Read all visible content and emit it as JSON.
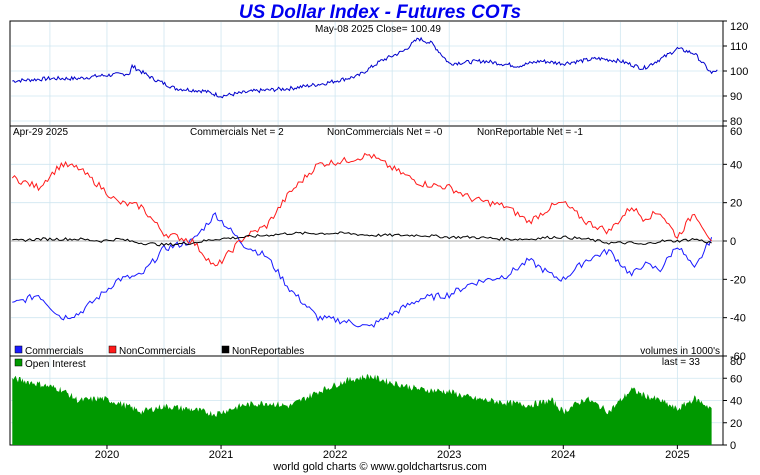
{
  "title": "US Dollar Index - Futures COTs",
  "credit": "world gold charts © www.goldchartsrus.com",
  "colors": {
    "price": "#0000cc",
    "commercials": "#1a1aff",
    "noncommercials": "#ff1a1a",
    "nonreportables": "#000000",
    "open_interest": "#009900",
    "title": "#0000ee",
    "grid": "#cfe6f0"
  },
  "chart_data": [
    {
      "type": "line",
      "panel": "price",
      "subtitle": "May-08  2025   Close= 100.49",
      "ylim": [
        78,
        120
      ],
      "yticks": [
        80,
        90,
        100,
        110,
        120
      ],
      "x_ticks": [
        "2020",
        "2021",
        "2022",
        "2023",
        "2024",
        "2025"
      ],
      "x": [
        2019.17,
        2019.5,
        2019.75,
        2019.92,
        2020.2,
        2020.22,
        2020.4,
        2020.6,
        2020.85,
        2021.0,
        2021.3,
        2021.6,
        2021.9,
        2022.2,
        2022.4,
        2022.6,
        2022.73,
        2022.85,
        2023.0,
        2023.3,
        2023.6,
        2023.8,
        2024.0,
        2024.3,
        2024.5,
        2024.7,
        2024.9,
        2025.0,
        2025.15,
        2025.3,
        2025.35
      ],
      "y": [
        96,
        97,
        97,
        98,
        99,
        102,
        97,
        93,
        92,
        90,
        92,
        93,
        95,
        98,
        104,
        108,
        113,
        111,
        103,
        104,
        102,
        104,
        103,
        105,
        104,
        101,
        106,
        109,
        107,
        99,
        100.49
      ],
      "grid": true
    },
    {
      "type": "line",
      "panel": "cot",
      "date_label": "Apr-29  2025",
      "header": [
        "Commercials Net = 2",
        "NonCommercials Net = -0",
        "NonReportable Net = -1"
      ],
      "legend": [
        "Commercials",
        "NonCommercials",
        "NonReportables"
      ],
      "legend_placement": "bottom-left",
      "units_note": "volumes in 1000's",
      "ylim": [
        -60,
        60
      ],
      "yticks": [
        -60,
        -40,
        -20,
        0,
        20,
        40,
        60
      ],
      "x_ticks": [
        "2020",
        "2021",
        "2022",
        "2023",
        "2024",
        "2025"
      ],
      "x": [
        2019.17,
        2019.4,
        2019.6,
        2019.75,
        2019.95,
        2020.1,
        2020.3,
        2020.5,
        2020.75,
        2020.95,
        2021.2,
        2021.4,
        2021.6,
        2021.85,
        2022.1,
        2022.3,
        2022.5,
        2022.75,
        2023.0,
        2023.2,
        2023.5,
        2023.7,
        2023.9,
        2024.0,
        2024.2,
        2024.4,
        2024.6,
        2024.7,
        2024.85,
        2025.0,
        2025.15,
        2025.3
      ],
      "series": [
        {
          "name": "Commercials",
          "values": [
            -33,
            -28,
            -40,
            -38,
            -28,
            -20,
            -18,
            -4,
            0,
            14,
            -2,
            -8,
            -25,
            -40,
            -42,
            -45,
            -38,
            -30,
            -28,
            -22,
            -18,
            -10,
            -18,
            -20,
            -10,
            -5,
            -18,
            -12,
            -15,
            -2,
            -15,
            2
          ]
        },
        {
          "name": "NonCommercials",
          "values": [
            33,
            28,
            40,
            38,
            28,
            20,
            18,
            4,
            0,
            -14,
            2,
            8,
            25,
            40,
            42,
            45,
            38,
            30,
            28,
            22,
            18,
            10,
            18,
            20,
            10,
            5,
            18,
            12,
            15,
            2,
            15,
            0
          ]
        },
        {
          "name": "NonReportables",
          "values": [
            0,
            1,
            1,
            1,
            0,
            1,
            -1,
            -2,
            -1,
            1,
            2,
            3,
            4,
            4,
            4,
            3,
            3,
            3,
            2,
            2,
            1,
            1,
            2,
            2,
            1,
            -1,
            -1,
            -2,
            0,
            0,
            1,
            -1
          ]
        }
      ],
      "grid": true
    },
    {
      "type": "area",
      "panel": "open_interest",
      "legend": [
        "Open Interest"
      ],
      "last_label": "last = 33",
      "ylim": [
        0,
        80
      ],
      "yticks": [
        0,
        20,
        40,
        60,
        80
      ],
      "x_ticks": [
        "2020",
        "2021",
        "2022",
        "2023",
        "2024",
        "2025"
      ],
      "x": [
        2019.17,
        2019.4,
        2019.6,
        2019.75,
        2019.95,
        2020.1,
        2020.3,
        2020.5,
        2020.75,
        2020.95,
        2021.2,
        2021.4,
        2021.6,
        2021.85,
        2022.1,
        2022.3,
        2022.5,
        2022.75,
        2023.0,
        2023.2,
        2023.5,
        2023.7,
        2023.9,
        2024.0,
        2024.2,
        2024.4,
        2024.6,
        2024.7,
        2024.85,
        2025.0,
        2025.15,
        2025.3
      ],
      "values": [
        60,
        55,
        50,
        40,
        42,
        38,
        30,
        35,
        32,
        28,
        36,
        38,
        35,
        48,
        58,
        62,
        56,
        50,
        48,
        42,
        38,
        36,
        40,
        30,
        42,
        30,
        50,
        45,
        40,
        32,
        42,
        33
      ],
      "grid": true
    }
  ]
}
